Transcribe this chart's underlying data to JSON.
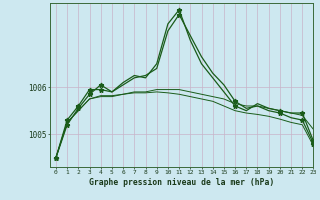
{
  "title": "Graphe pression niveau de la mer (hPa)",
  "bg_color": "#cde8f0",
  "grid_color": "#c8b4c8",
  "line_color": "#1a5c1a",
  "ylim": [
    1004.3,
    1007.8
  ],
  "xlim": [
    -0.5,
    23
  ],
  "yticks": [
    1005,
    1006
  ],
  "xticks": [
    0,
    1,
    2,
    3,
    4,
    5,
    6,
    7,
    8,
    9,
    10,
    11,
    12,
    13,
    14,
    15,
    16,
    17,
    18,
    19,
    20,
    21,
    22,
    23
  ],
  "series_main": [
    1004.5,
    1005.2,
    1005.55,
    1005.85,
    1006.05,
    1005.9,
    1006.1,
    1006.25,
    1006.2,
    1006.5,
    1007.35,
    1007.65,
    1007.0,
    1006.5,
    1006.2,
    1005.9,
    1005.6,
    1005.5,
    1005.65,
    1005.55,
    1005.5,
    1005.45,
    1005.45,
    1004.85
  ],
  "series_spiky": [
    1004.5,
    1005.3,
    1005.6,
    1005.95,
    1005.95,
    1005.9,
    1006.05,
    1006.2,
    1006.25,
    1006.4,
    1007.2,
    1007.55,
    1007.1,
    1006.65,
    1006.3,
    1006.05,
    1005.7,
    1005.55,
    1005.6,
    1005.5,
    1005.45,
    1005.35,
    1005.3,
    1004.8
  ],
  "series_flat": [
    1004.5,
    1005.25,
    1005.5,
    1005.75,
    1005.8,
    1005.8,
    1005.85,
    1005.9,
    1005.9,
    1005.95,
    1005.95,
    1005.95,
    1005.9,
    1005.85,
    1005.8,
    1005.75,
    1005.65,
    1005.6,
    1005.6,
    1005.55,
    1005.5,
    1005.45,
    1005.4,
    1005.1
  ],
  "series_diagonal": [
    1004.5,
    1005.25,
    1005.5,
    1005.75,
    1005.82,
    1005.82,
    1005.85,
    1005.88,
    1005.88,
    1005.9,
    1005.88,
    1005.85,
    1005.8,
    1005.75,
    1005.7,
    1005.6,
    1005.5,
    1005.45,
    1005.42,
    1005.38,
    1005.32,
    1005.25,
    1005.2,
    1004.75
  ],
  "markers_x": [
    0,
    1,
    2,
    3,
    4,
    11,
    16,
    20,
    22,
    23
  ],
  "markers_y": [
    1004.5,
    1005.3,
    1005.6,
    1005.95,
    1005.95,
    1007.55,
    1005.7,
    1005.45,
    1005.3,
    1004.8
  ],
  "markers2_x": [
    0,
    1,
    2,
    3,
    4,
    11,
    16,
    20,
    22,
    23
  ],
  "markers2_y": [
    1004.5,
    1005.2,
    1005.55,
    1005.85,
    1006.05,
    1007.65,
    1005.6,
    1005.5,
    1005.45,
    1004.85
  ]
}
